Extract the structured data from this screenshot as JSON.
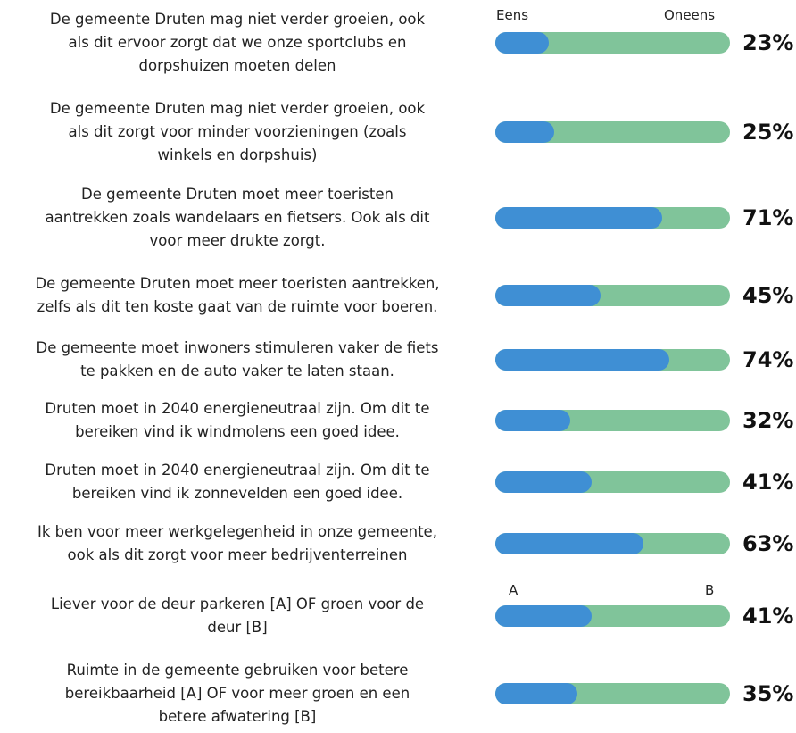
{
  "chart_data": {
    "type": "bar",
    "orientation": "horizontal",
    "categories": [
      [
        "De gemeente Druten mag niet verder groeien, ook",
        "als dit ervoor zorgt dat we onze sportclubs en",
        "dorpshuizen moeten delen"
      ],
      [
        "De gemeente Druten mag niet verder groeien, ook",
        "als dit zorgt voor minder voorzieningen (zoals",
        "winkels en dorpshuis)"
      ],
      [
        "De gemeente Druten moet meer toeristen",
        "aantrekken zoals wandelaars en fietsers. Ook als dit",
        "voor meer drukte zorgt."
      ],
      [
        "De gemeente Druten moet meer toeristen aantrekken,",
        "zelfs als dit ten koste gaat van de ruimte voor boeren."
      ],
      [
        "De gemeente moet inwoners stimuleren vaker de fiets",
        "te pakken en de auto vaker te laten staan."
      ],
      [
        "Druten moet in 2040 energieneutraal zijn. Om dit te",
        "bereiken vind ik windmolens een goed idee."
      ],
      [
        "Druten moet in 2040 energieneutraal zijn. Om dit te",
        "bereiken vind ik zonnevelden een goed idee."
      ],
      [
        "Ik ben voor meer werkgelegenheid in onze gemeente,",
        "ook als dit zorgt voor meer bedrijventerreinen"
      ],
      [
        "Liever voor de deur parkeren [A] OF groen voor de",
        "deur [B]"
      ],
      [
        "Ruimte in de gemeente gebruiken voor betere",
        "bereikbaarheid [A] OF voor meer groen en een",
        "betere afwatering [B]"
      ]
    ],
    "values": [
      23,
      25,
      71,
      45,
      74,
      32,
      41,
      63,
      41,
      35
    ],
    "value_labels": [
      "23%",
      "25%",
      "71%",
      "45%",
      "74%",
      "32%",
      "41%",
      "63%",
      "41%",
      "35%"
    ],
    "xlim": [
      0,
      100
    ],
    "color": "#3f8fd4",
    "track_color": "#80c49a",
    "annotations": [
      "Eens",
      "Oneens",
      "A",
      "B"
    ]
  }
}
